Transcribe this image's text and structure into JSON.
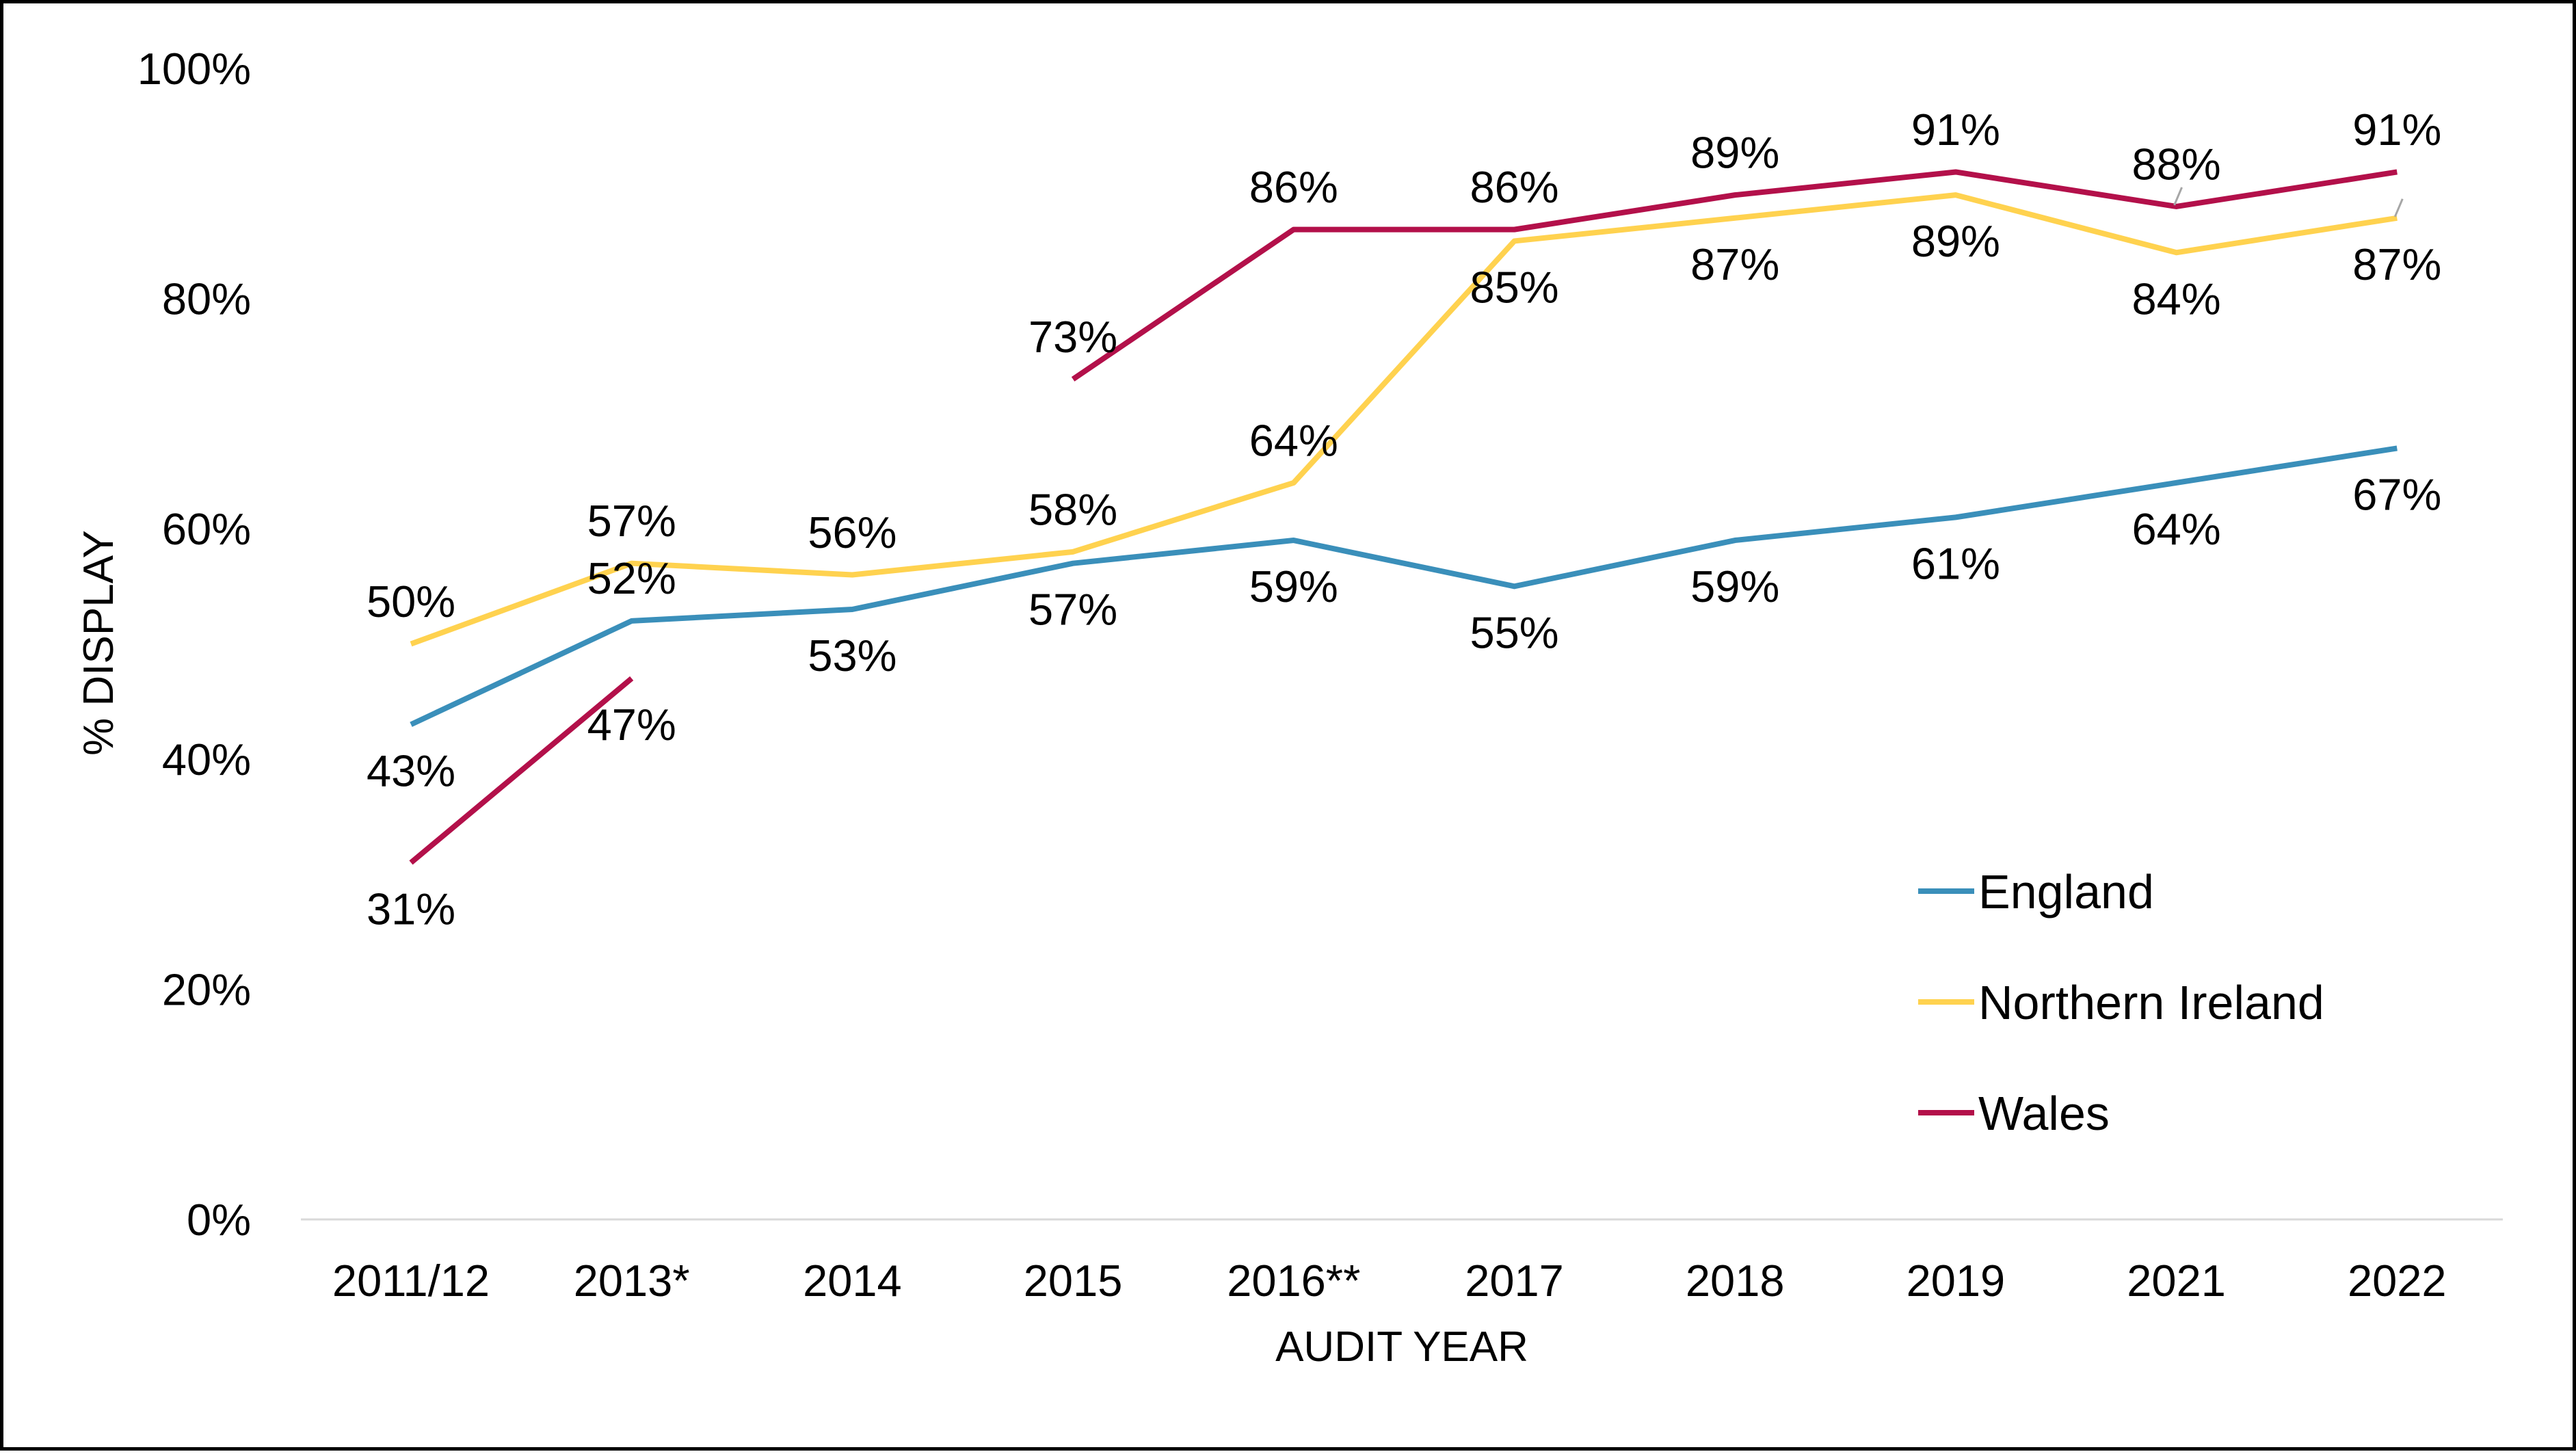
{
  "chart_data": {
    "type": "line",
    "title": "",
    "xlabel": "AUDIT YEAR",
    "ylabel": "% DISPLAY",
    "ylim": [
      0,
      100
    ],
    "yticks": [
      "0%",
      "20%",
      "40%",
      "60%",
      "80%",
      "100%"
    ],
    "grid": false,
    "legend_position": "right-bottom",
    "categories": [
      "2011/12",
      "2013*",
      "2014",
      "2015",
      "2016**",
      "2017",
      "2018",
      "2019",
      "2021",
      "2022"
    ],
    "series": [
      {
        "name": "England",
        "color": "#3a8fba",
        "values": [
          43,
          52,
          53,
          57,
          59,
          55,
          59,
          61,
          64,
          67
        ],
        "labels": [
          "43%",
          "52%",
          "53%",
          "57%",
          "59%",
          "55%",
          "59%",
          "61%",
          "64%",
          "67%"
        ]
      },
      {
        "name": "Northern Ireland",
        "color": "#ffd24f",
        "values": [
          50,
          57,
          56,
          58,
          64,
          85,
          87,
          89,
          84,
          87
        ],
        "labels": [
          "50%",
          "57%",
          "56%",
          "58%",
          "64%",
          "85%",
          "87%",
          "89%",
          "84%",
          "87%"
        ]
      },
      {
        "name": "Wales",
        "color": "#b3104a",
        "values": [
          31,
          47,
          null,
          73,
          86,
          86,
          89,
          91,
          88,
          91
        ],
        "labels": [
          "31%",
          "47%",
          null,
          "73%",
          "86%",
          "86%",
          "89%",
          "91%",
          "88%",
          "91%"
        ]
      }
    ]
  }
}
